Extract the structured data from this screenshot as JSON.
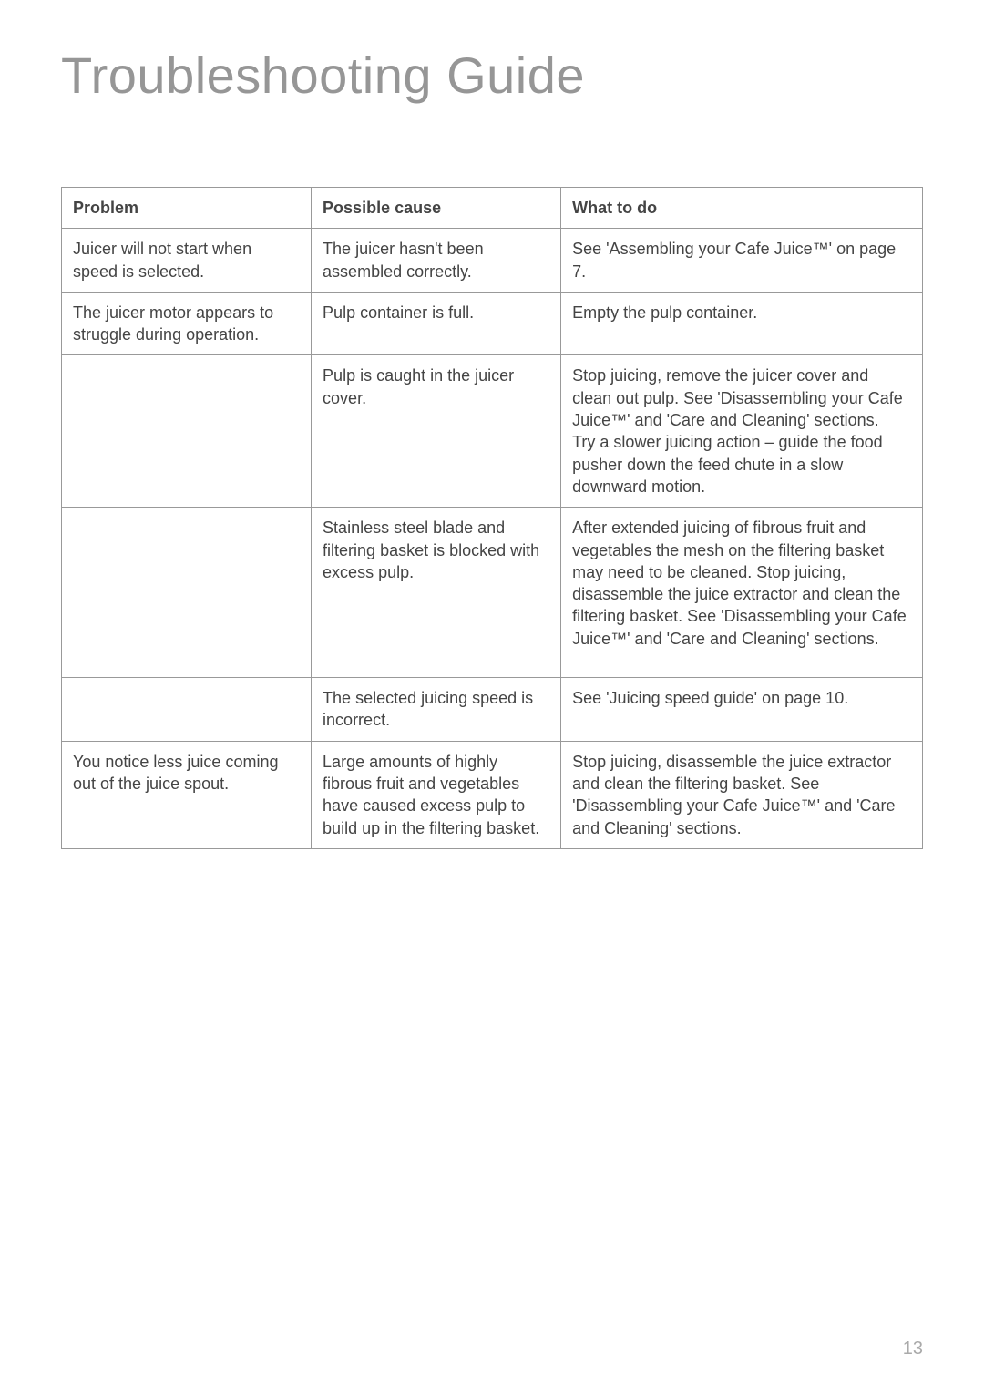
{
  "title": "Troubleshooting Guide",
  "page_number": "13",
  "table": {
    "headers": {
      "problem": "Problem",
      "cause": "Possible cause",
      "what": "What to do"
    },
    "rows": [
      {
        "problem": "Juicer will not start when speed is selected.",
        "cause": "The juicer hasn't been assembled correctly.",
        "what": "See 'Assembling your Cafe Juice™' on page 7."
      },
      {
        "problem": "The juicer motor appears to struggle during operation.",
        "cause": "Pulp container is full.",
        "what": "Empty the pulp container."
      },
      {
        "problem": "",
        "cause": "Pulp is caught in the juicer cover.",
        "what": "Stop juicing, remove the juicer cover and clean out pulp. See 'Disassembling your Cafe Juice™' and 'Care and Cleaning' sections.\nTry a slower juicing action – guide the food pusher down the feed chute in a slow downward motion."
      },
      {
        "problem": "",
        "cause": "Stainless steel blade and filtering basket is blocked with excess pulp.",
        "what": "After extended juicing of fibrous fruit and vegetables the mesh on the filtering basket may need to be cleaned. Stop juicing, disassemble the juice extractor and clean the filtering basket. See 'Disassembling your Cafe Juice™' and 'Care and Cleaning' sections."
      },
      {
        "problem": "",
        "cause": "The selected juicing speed is incorrect.",
        "what": "See 'Juicing speed guide' on page 10."
      },
      {
        "problem": "You notice less juice coming out of the juice spout.",
        "cause": "Large amounts of highly fibrous fruit and vegetables have caused excess pulp to build up in the filtering basket.",
        "what": "Stop juicing, disassemble the juice extractor and clean the filtering basket. See 'Disassembling your Cafe Juice™' and 'Care and Cleaning' sections."
      }
    ]
  },
  "styling": {
    "background_color": "#ffffff",
    "title_color": "#969696",
    "title_fontsize": 56,
    "title_fontweight": 300,
    "border_color": "#999999",
    "cell_text_color": "#444444",
    "cell_fontsize": 18,
    "page_number_color": "#aaaaaa",
    "page_number_fontsize": 20,
    "column_widths_percent": [
      29,
      29,
      42
    ]
  }
}
